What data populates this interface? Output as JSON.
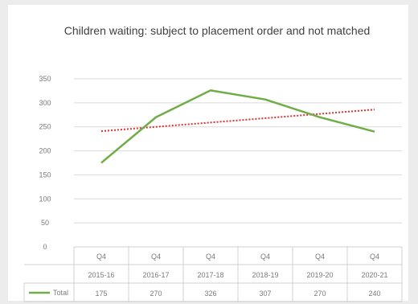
{
  "chart_data": {
    "type": "line",
    "title": "Children waiting: subject to placement order and not matched",
    "categories": [
      [
        "Q4",
        "2015-16"
      ],
      [
        "Q4",
        "2016-17"
      ],
      [
        "Q4",
        "2017-18"
      ],
      [
        "Q4",
        "2018-19"
      ],
      [
        "Q4",
        "2019-20"
      ],
      [
        "Q4",
        "2020-21"
      ]
    ],
    "series": [
      {
        "name": "Total",
        "values": [
          175,
          270,
          326,
          307,
          270,
          240
        ],
        "color": "#70ad47"
      }
    ],
    "trendline": {
      "type": "linear",
      "color": "#e03030",
      "style": "dotted",
      "values": [
        241,
        250,
        259,
        268,
        277,
        286
      ]
    },
    "y_ticks": [
      0,
      50,
      100,
      150,
      200,
      250,
      300,
      350
    ],
    "ylim": [
      0,
      350
    ],
    "grid": true,
    "legend": "data-table",
    "data_table": true
  }
}
